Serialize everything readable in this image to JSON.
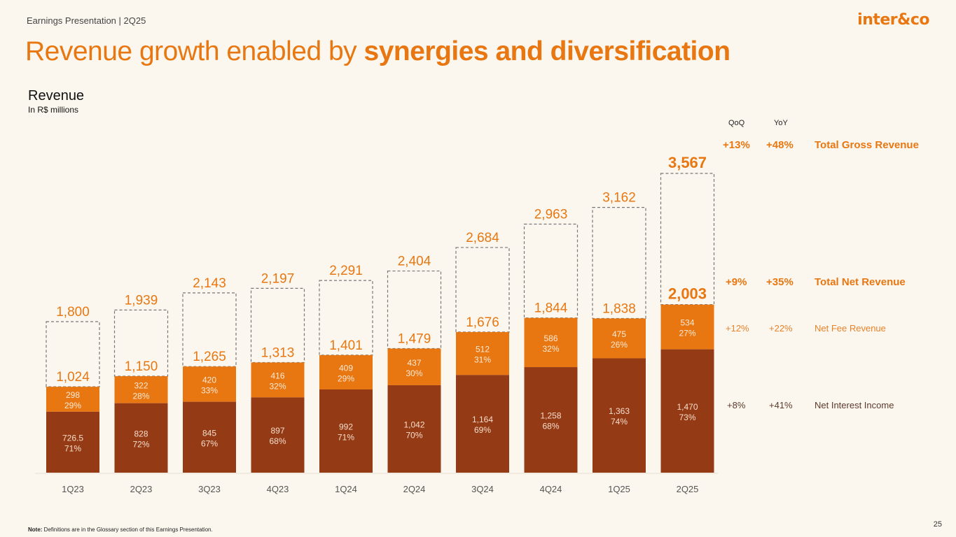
{
  "header": {
    "subtitle": "Earnings Presentation | 2Q25",
    "logo": "inter&co",
    "title_regular": "Revenue growth enabled by ",
    "title_bold": "synergies and diversification"
  },
  "section": {
    "title": "Revenue",
    "unit": "In R$ millions"
  },
  "side_panel": {
    "qoq_header": "QoQ",
    "yoy_header": "YoY",
    "rows": [
      {
        "qoq": "+13%",
        "yoy": "+48%",
        "label": "Total Gross Revenue"
      },
      {
        "qoq": "+9%",
        "yoy": "+35%",
        "label": "Total Net Revenue"
      },
      {
        "qoq": "+12%",
        "yoy": "+22%",
        "label": "Net Fee Revenue"
      },
      {
        "qoq": "+8%",
        "yoy": "+41%",
        "label": "Net Interest Income"
      }
    ]
  },
  "footer": {
    "note_label": "Note:",
    "note_text": " Definitions are in the Glossary section of this Earnings Presentation.",
    "page_number": "25"
  },
  "colors": {
    "accent": "#e87712",
    "nii": "#943b15",
    "fee": "#e87712",
    "background": "#fcf7ee",
    "dashed": "#777777"
  },
  "chart_data": {
    "type": "bar",
    "stacked": true,
    "title": "Revenue",
    "ylabel": "In R$ millions",
    "categories": [
      "1Q23",
      "2Q23",
      "3Q23",
      "4Q23",
      "1Q24",
      "2Q24",
      "3Q24",
      "4Q24",
      "1Q25",
      "2Q25"
    ],
    "series": [
      {
        "name": "Net Interest Income",
        "values": [
          726.5,
          828,
          845,
          897,
          992,
          1042,
          1164,
          1258,
          1363,
          1470
        ],
        "share_labels": [
          "71%",
          "72%",
          "67%",
          "68%",
          "71%",
          "70%",
          "69%",
          "68%",
          "74%",
          "73%"
        ],
        "value_labels": [
          "726.5",
          "828",
          "845",
          "897",
          "992",
          "1,042",
          "1,164",
          "1,258",
          "1,363",
          "1,470"
        ]
      },
      {
        "name": "Net Fee Revenue",
        "values": [
          298,
          322,
          420,
          416,
          409,
          437,
          512,
          586,
          475,
          534
        ],
        "share_labels": [
          "29%",
          "28%",
          "33%",
          "32%",
          "29%",
          "30%",
          "31%",
          "32%",
          "26%",
          "27%"
        ],
        "value_labels": [
          "298",
          "322",
          "420",
          "416",
          "409",
          "437",
          "512",
          "586",
          "475",
          "534"
        ]
      }
    ],
    "total_net_revenue": [
      1024,
      1150,
      1265,
      1313,
      1401,
      1479,
      1676,
      1844,
      1838,
      2003
    ],
    "total_net_labels": [
      "1,024",
      "1,150",
      "1,265",
      "1,313",
      "1,401",
      "1,479",
      "1,676",
      "1,844",
      "1,838",
      "2,003"
    ],
    "total_gross_revenue": [
      1800,
      1939,
      2143,
      2197,
      2291,
      2404,
      2684,
      2963,
      3162,
      3567
    ],
    "total_gross_labels": [
      "1,800",
      "1,939",
      "2,143",
      "2,197",
      "2,291",
      "2,404",
      "2,684",
      "2,963",
      "3,162",
      "3,567"
    ],
    "ylim": [
      0,
      4000
    ],
    "grid": false,
    "legend": "right"
  }
}
